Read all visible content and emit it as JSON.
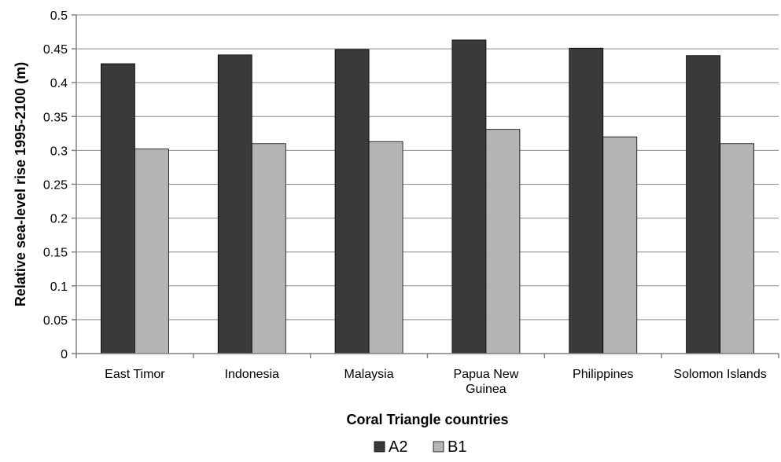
{
  "chart_data": {
    "type": "bar",
    "title": "",
    "xlabel": "Coral Triangle countries",
    "ylabel": "Relative sea-level rise 1995-2100 (m)",
    "categories": [
      [
        "East Timor"
      ],
      [
        "Indonesia"
      ],
      [
        "Malaysia"
      ],
      [
        "Papua New",
        "Guinea"
      ],
      [
        "Philippines"
      ],
      [
        "Solomon Islands"
      ]
    ],
    "series": [
      {
        "name": "A2",
        "color": "#3a3a3a",
        "values": [
          0.428,
          0.441,
          0.449,
          0.463,
          0.451,
          0.44
        ]
      },
      {
        "name": "B1",
        "color": "#b4b4b4",
        "values": [
          0.302,
          0.31,
          0.313,
          0.331,
          0.32,
          0.31
        ]
      }
    ],
    "ylim": [
      0,
      0.5
    ],
    "yticks": [
      "0",
      "0.05",
      "0.1",
      "0.15",
      "0.2",
      "0.25",
      "0.3",
      "0.35",
      "0.4",
      "0.45",
      "0.5"
    ],
    "grid": true,
    "legend_position": "bottom"
  }
}
